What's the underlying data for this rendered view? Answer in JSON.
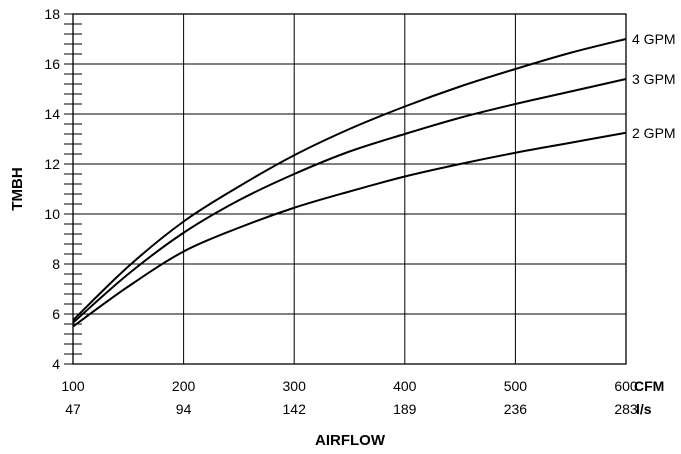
{
  "chart_data": {
    "type": "line",
    "ylabel": "TMBH",
    "xlabel": "AIRFLOW",
    "x_unit_primary": "CFM",
    "x_unit_secondary": "l/s",
    "xlim": [
      100,
      600
    ],
    "ylim": [
      4,
      18
    ],
    "x_ticks": [
      100,
      200,
      300,
      400,
      500,
      600
    ],
    "x_ticks_secondary": [
      "47",
      "94",
      "142",
      "189",
      "236",
      "283"
    ],
    "y_ticks": [
      4,
      6,
      8,
      10,
      12,
      14,
      16,
      18
    ],
    "grid": true,
    "series": [
      {
        "name": "4 GPM",
        "x": [
          100,
          150,
          200,
          250,
          300,
          350,
          400,
          450,
          500,
          550,
          600
        ],
        "y": [
          5.75,
          7.9,
          9.7,
          11.1,
          12.35,
          13.4,
          14.3,
          15.1,
          15.8,
          16.45,
          17.0
        ]
      },
      {
        "name": "3 GPM",
        "x": [
          100,
          150,
          200,
          250,
          300,
          350,
          400,
          450,
          500,
          550,
          600
        ],
        "y": [
          5.65,
          7.6,
          9.25,
          10.55,
          11.6,
          12.5,
          13.2,
          13.85,
          14.4,
          14.9,
          15.4
        ]
      },
      {
        "name": "2 GPM",
        "x": [
          100,
          150,
          200,
          250,
          300,
          350,
          400,
          450,
          500,
          550,
          600
        ],
        "y": [
          5.5,
          7.1,
          8.5,
          9.45,
          10.25,
          10.9,
          11.5,
          12.0,
          12.45,
          12.85,
          13.25
        ]
      }
    ]
  }
}
